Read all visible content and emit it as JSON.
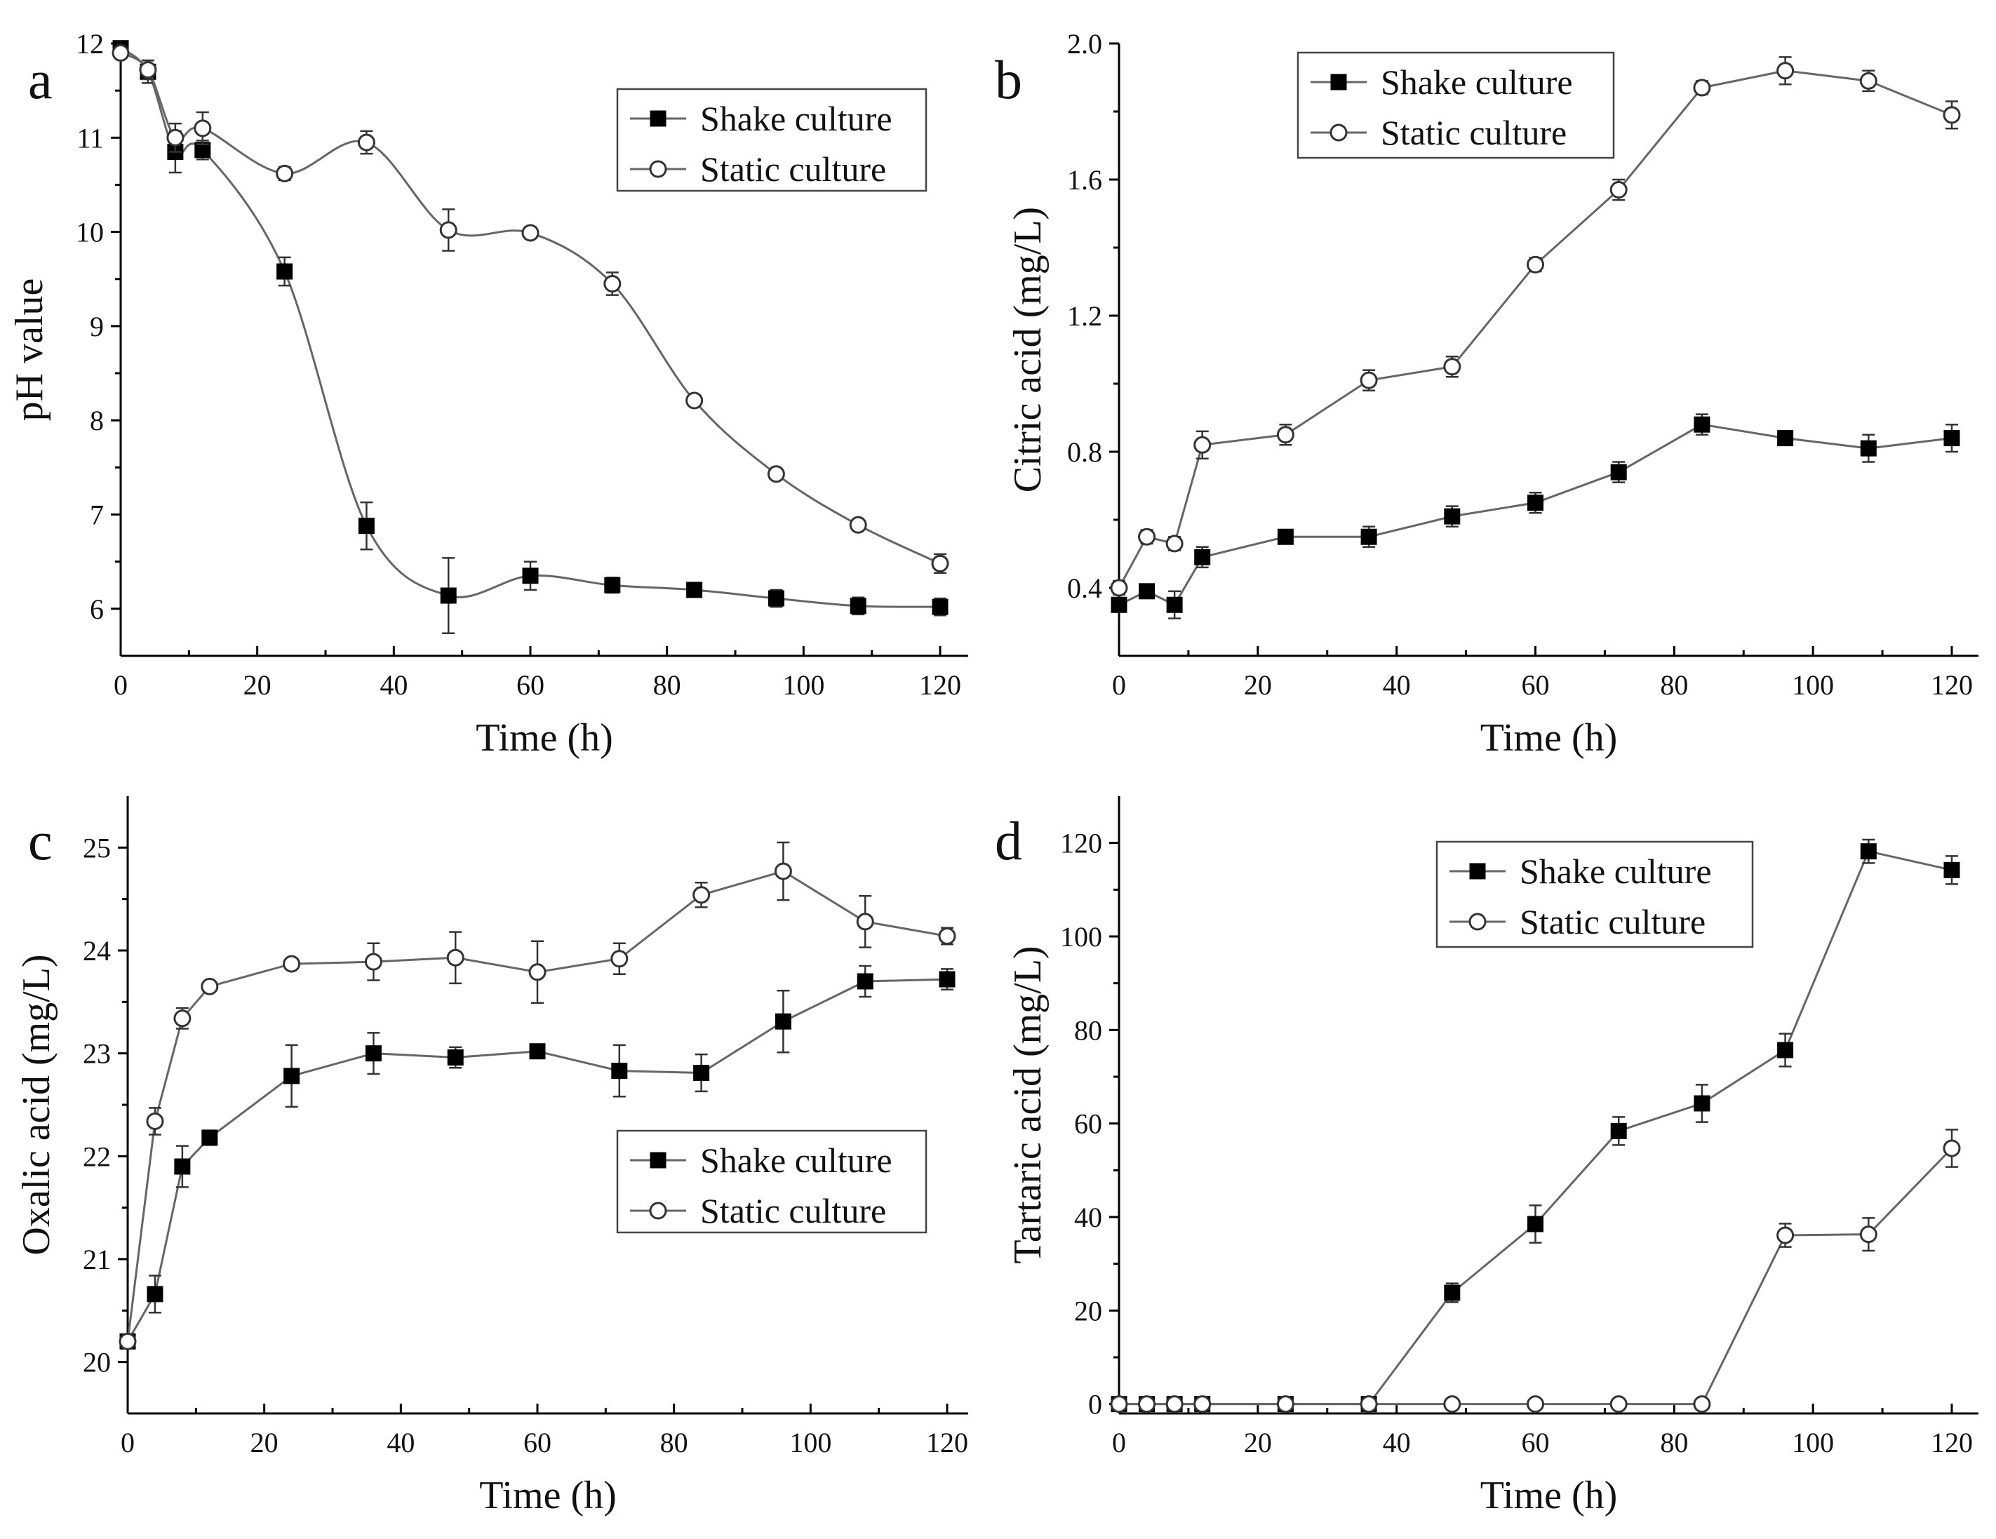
{
  "chart_data": [
    {
      "id": "a",
      "type": "line",
      "panel_label": "a",
      "xlabel": "Time (h)",
      "ylabel": "pH value",
      "xlim": [
        0,
        120
      ],
      "ylim": [
        5.5,
        12
      ],
      "xticks": [
        0,
        20,
        40,
        60,
        80,
        100,
        120
      ],
      "yticks": [
        6,
        7,
        8,
        9,
        10,
        11,
        12
      ],
      "tick_decimals": 0,
      "smooth": true,
      "legend_position": "top-right",
      "series": [
        {
          "name": "Shake culture",
          "marker": "filled-square",
          "x": [
            0,
            4,
            8,
            12,
            24,
            36,
            48,
            60,
            72,
            84,
            96,
            108,
            120
          ],
          "y": [
            11.95,
            11.7,
            10.85,
            10.87,
            9.58,
            6.88,
            6.14,
            6.35,
            6.25,
            6.2,
            6.11,
            6.03,
            6.02
          ],
          "err": [
            0.05,
            0.12,
            0.22,
            0.1,
            0.15,
            0.25,
            0.4,
            0.15,
            0.08,
            0.06,
            0.09,
            0.09,
            0.09
          ]
        },
        {
          "name": "Static culture",
          "marker": "open-circle",
          "x": [
            0,
            4,
            8,
            12,
            24,
            36,
            48,
            60,
            72,
            84,
            96,
            108,
            120
          ],
          "y": [
            11.9,
            11.72,
            11.0,
            11.1,
            10.62,
            10.95,
            10.02,
            9.99,
            9.45,
            8.21,
            7.43,
            6.89,
            6.48
          ],
          "err": [
            0.05,
            0.1,
            0.15,
            0.17,
            0.07,
            0.12,
            0.22,
            0.06,
            0.12,
            0.05,
            0.05,
            0.05,
            0.1
          ]
        }
      ]
    },
    {
      "id": "b",
      "type": "line",
      "panel_label": "b",
      "xlabel": "Time (h)",
      "ylabel": "Citric acid (mg/L)",
      "xlim": [
        0,
        122
      ],
      "ylim": [
        0.2,
        2.0
      ],
      "xticks": [
        0,
        20,
        40,
        60,
        80,
        100,
        120
      ],
      "yticks": [
        0.4,
        0.8,
        1.2,
        1.6,
        2.0
      ],
      "tick_decimals": 1,
      "smooth": false,
      "legend_position": "top-left",
      "series": [
        {
          "name": "Shake culture",
          "marker": "filled-square",
          "x": [
            0,
            4,
            8,
            12,
            24,
            36,
            48,
            60,
            72,
            84,
            96,
            108,
            120
          ],
          "y": [
            0.35,
            0.39,
            0.35,
            0.49,
            0.55,
            0.55,
            0.61,
            0.65,
            0.74,
            0.88,
            0.84,
            0.81,
            0.84
          ],
          "err": [
            0.02,
            0.02,
            0.04,
            0.03,
            0.02,
            0.03,
            0.03,
            0.03,
            0.03,
            0.03,
            0.02,
            0.04,
            0.04
          ]
        },
        {
          "name": "Static culture",
          "marker": "open-circle",
          "x": [
            0,
            4,
            8,
            12,
            24,
            36,
            48,
            60,
            72,
            84,
            96,
            108,
            120
          ],
          "y": [
            0.4,
            0.55,
            0.53,
            0.82,
            0.85,
            1.01,
            1.05,
            1.35,
            1.57,
            1.87,
            1.92,
            1.89,
            1.79
          ],
          "err": [
            0.02,
            0.02,
            0.02,
            0.04,
            0.03,
            0.03,
            0.03,
            0.02,
            0.03,
            0.02,
            0.04,
            0.03,
            0.04
          ]
        }
      ]
    },
    {
      "id": "c",
      "type": "line",
      "panel_label": "c",
      "xlabel": "Time (h)",
      "ylabel": "Oxalic acid (mg/L)",
      "xlim": [
        0,
        122
      ],
      "ylim": [
        19.5,
        25.5
      ],
      "xticks": [
        0,
        20,
        40,
        60,
        80,
        100,
        120
      ],
      "yticks": [
        20,
        21,
        22,
        23,
        24,
        25
      ],
      "tick_decimals": 0,
      "smooth": false,
      "legend_position": "center-right",
      "series": [
        {
          "name": "Shake culture",
          "marker": "filled-square",
          "x": [
            0,
            4,
            8,
            12,
            24,
            36,
            48,
            60,
            72,
            84,
            96,
            108,
            120
          ],
          "y": [
            20.2,
            20.66,
            21.9,
            22.18,
            22.78,
            23.0,
            22.96,
            23.02,
            22.83,
            22.81,
            23.31,
            23.7,
            23.72
          ],
          "err": [
            0.05,
            0.18,
            0.2,
            0.07,
            0.3,
            0.2,
            0.1,
            0.05,
            0.25,
            0.18,
            0.3,
            0.15,
            0.1
          ]
        },
        {
          "name": "Static culture",
          "marker": "open-circle",
          "x": [
            0,
            4,
            8,
            12,
            24,
            36,
            48,
            60,
            72,
            84,
            96,
            108,
            120
          ],
          "y": [
            20.2,
            22.34,
            23.34,
            23.65,
            23.87,
            23.89,
            23.93,
            23.79,
            23.92,
            24.54,
            24.77,
            24.28,
            24.14
          ],
          "err": [
            0.05,
            0.13,
            0.1,
            0.05,
            0.05,
            0.18,
            0.25,
            0.3,
            0.15,
            0.12,
            0.28,
            0.25,
            0.08
          ]
        }
      ]
    },
    {
      "id": "d",
      "type": "line",
      "panel_label": "d",
      "xlabel": "Time (h)",
      "ylabel": "Tartaric acid (mg/L)",
      "xlim": [
        0,
        122
      ],
      "ylim": [
        -2,
        130
      ],
      "xticks": [
        0,
        20,
        40,
        60,
        80,
        100,
        120
      ],
      "yticks": [
        0,
        20,
        40,
        60,
        80,
        100,
        120
      ],
      "tick_decimals": 0,
      "smooth": false,
      "legend_position": "top-right",
      "series": [
        {
          "name": "Shake culture",
          "marker": "filled-square",
          "x": [
            0,
            4,
            8,
            12,
            24,
            36,
            48,
            60,
            72,
            84,
            96,
            108,
            120
          ],
          "y": [
            0,
            0,
            0,
            0,
            0,
            0,
            23.8,
            38.5,
            58.4,
            64.3,
            75.7,
            118.2,
            114.2
          ],
          "err": [
            0,
            0,
            0,
            0,
            0,
            0,
            2.0,
            4.0,
            3.0,
            4.0,
            3.5,
            2.5,
            3.0
          ]
        },
        {
          "name": "Static culture",
          "marker": "open-circle",
          "x": [
            0,
            4,
            8,
            12,
            24,
            36,
            48,
            60,
            72,
            84,
            96,
            108,
            120
          ],
          "y": [
            0,
            0,
            0,
            0,
            0,
            0,
            0,
            0,
            0,
            0,
            36.1,
            36.3,
            54.7
          ],
          "err": [
            0,
            0,
            0,
            0,
            0,
            0,
            0,
            0,
            0,
            0,
            2.5,
            3.5,
            4.0
          ]
        }
      ]
    }
  ]
}
